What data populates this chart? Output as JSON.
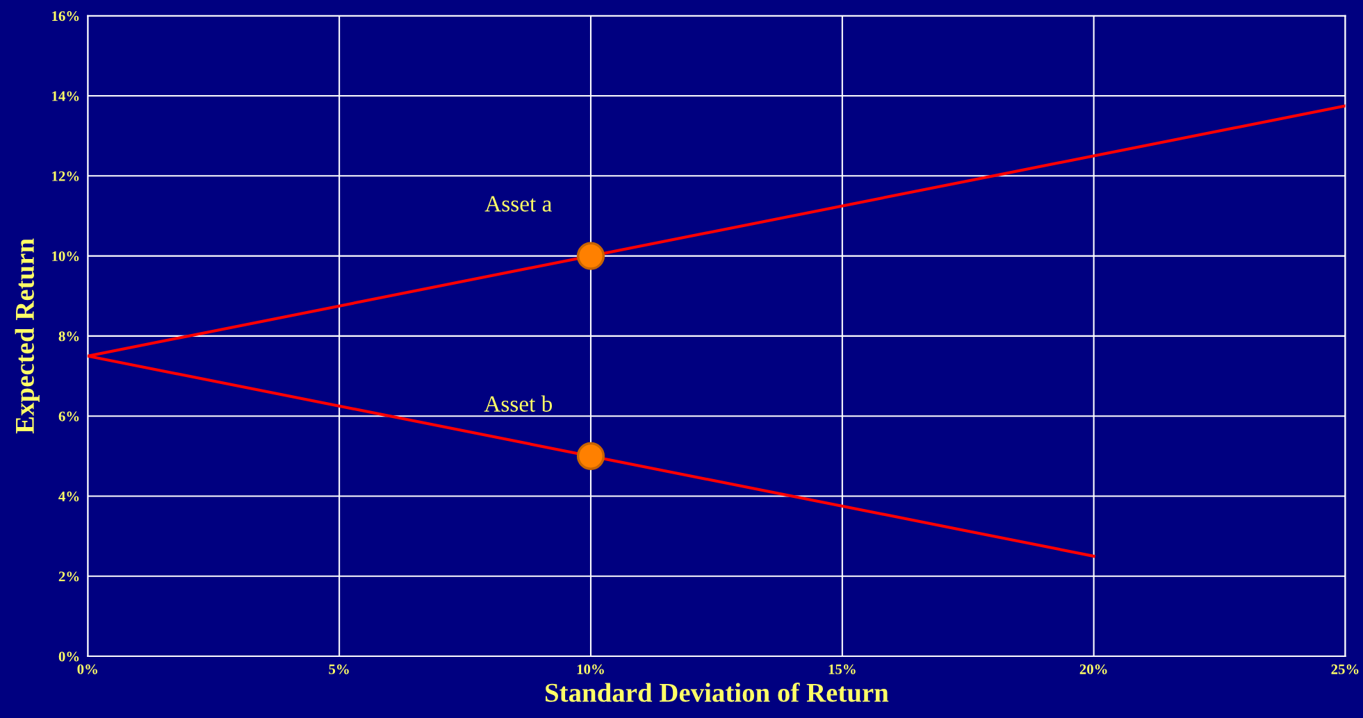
{
  "chart_data": {
    "type": "line",
    "xlabel": "Standard Deviation of Return",
    "ylabel": "Expected Return",
    "series": [
      {
        "color": "#ff0000",
        "x": [
          0,
          25
        ],
        "values": [
          7.5,
          13.75
        ],
        "marker": "none",
        "line_style": "solid"
      },
      {
        "color": "#ff0000",
        "x": [
          0,
          20
        ],
        "values": [
          7.5,
          2.5
        ],
        "marker": "none",
        "line_style": "solid"
      },
      {
        "type": "scatter",
        "color": "#ff8000",
        "x": [
          10,
          10
        ],
        "values": [
          10,
          5
        ],
        "marker": "circle"
      }
    ],
    "annotations": [
      {
        "text": "Asset a",
        "x": 10,
        "y": 10
      },
      {
        "text": "Asset b",
        "x": 10,
        "y": 5
      }
    ],
    "xlim": [
      0,
      25
    ],
    "ylim": [
      0,
      16
    ],
    "xticks": [
      {
        "value": 0,
        "label": "0%"
      },
      {
        "value": 5,
        "label": "5%"
      },
      {
        "value": 10,
        "label": "10%"
      },
      {
        "value": 15,
        "label": "15%"
      },
      {
        "value": 20,
        "label": "20%"
      },
      {
        "value": 25,
        "label": "25%"
      }
    ],
    "yticks": [
      {
        "value": 0,
        "label": "0%"
      },
      {
        "value": 2,
        "label": "2%"
      },
      {
        "value": 4,
        "label": "4%"
      },
      {
        "value": 6,
        "label": "6%"
      },
      {
        "value": 8,
        "label": "8%"
      },
      {
        "value": 10,
        "label": "10%"
      },
      {
        "value": 12,
        "label": "12%"
      },
      {
        "value": 14,
        "label": "14%"
      },
      {
        "value": 16,
        "label": "16%"
      }
    ],
    "grid": true,
    "legend": false
  }
}
